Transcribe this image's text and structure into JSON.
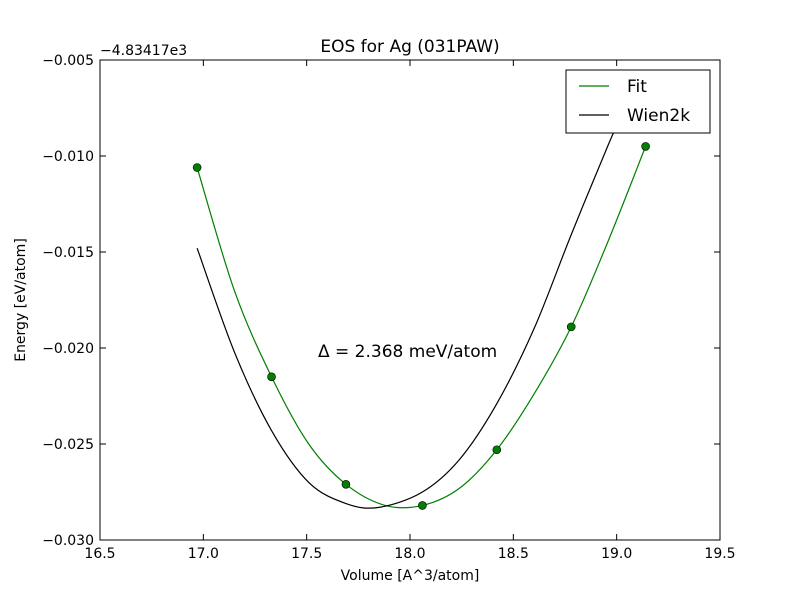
{
  "chart_data": {
    "type": "line",
    "title": "EOS for Ag (031PAW)",
    "xlabel": "Volume [A^3/atom]",
    "ylabel": "Energy [eV/atom]",
    "offset_label": "−4.83417e3",
    "annotation": "Δ = 2.368 meV/atom",
    "xlim": [
      16.5,
      19.5
    ],
    "ylim": [
      -0.03,
      -0.005
    ],
    "x_ticks": [
      16.5,
      17.0,
      17.5,
      18.0,
      18.5,
      19.0,
      19.5
    ],
    "x_tick_labels": [
      "16.5",
      "17.0",
      "17.5",
      "18.0",
      "18.5",
      "19.0",
      "19.5"
    ],
    "y_ticks": [
      -0.03,
      -0.025,
      -0.02,
      -0.015,
      -0.01,
      -0.005
    ],
    "y_tick_labels": [
      "−0.030",
      "−0.025",
      "−0.020",
      "−0.015",
      "−0.010",
      "−0.005"
    ],
    "grid": false,
    "legend_position": "top-right",
    "points": {
      "color": "#007f00",
      "x": [
        16.97,
        17.33,
        17.69,
        18.06,
        18.42,
        18.78,
        19.14
      ],
      "y": [
        -0.0106,
        -0.0215,
        -0.0271,
        -0.0282,
        -0.0253,
        -0.0189,
        -0.0095
      ]
    },
    "series": [
      {
        "name": "Fit",
        "color": "#007f00",
        "x": [
          16.97,
          17.15,
          17.33,
          17.51,
          17.69,
          17.88,
          18.06,
          18.24,
          18.42,
          18.6,
          18.78,
          18.96,
          19.14
        ],
        "y": [
          -0.0106,
          -0.017,
          -0.0215,
          -0.025,
          -0.0271,
          -0.0282,
          -0.0282,
          -0.0273,
          -0.0253,
          -0.0224,
          -0.0189,
          -0.0144,
          -0.0095
        ]
      },
      {
        "name": "Wien2k",
        "color": "#000000",
        "x": [
          16.97,
          17.15,
          17.33,
          17.51,
          17.69,
          17.85,
          18.06,
          18.24,
          18.42,
          18.6,
          18.78,
          18.96,
          19.06
        ],
        "y": [
          -0.0148,
          -0.0202,
          -0.0243,
          -0.027,
          -0.0281,
          -0.0283,
          -0.0275,
          -0.0258,
          -0.0229,
          -0.019,
          -0.0141,
          -0.0094,
          -0.007
        ]
      }
    ]
  }
}
